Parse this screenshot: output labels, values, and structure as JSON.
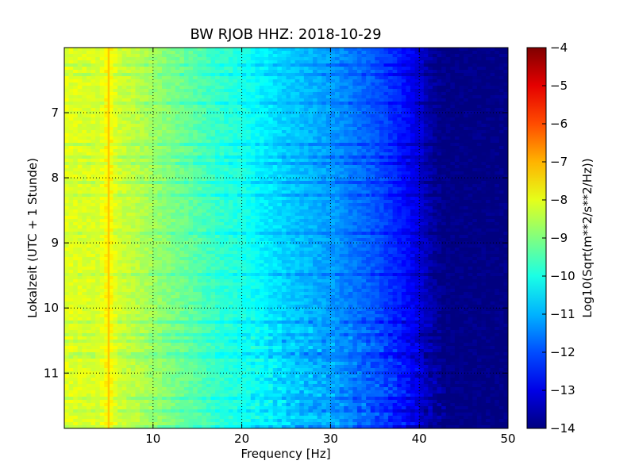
{
  "chart_data": {
    "type": "heatmap",
    "title": "BW RJOB HHZ: 2018-10-29",
    "xlabel": "Frequency [Hz]",
    "ylabel": "Lokalzeit (UTC + 1 Stunde)",
    "xlim": [
      0,
      50
    ],
    "ylim": [
      6,
      11.85
    ],
    "y_inverted": true,
    "x_ticks": [
      10,
      20,
      30,
      40,
      50
    ],
    "x_tick_labels": [
      "10",
      "20",
      "30",
      "40",
      "50"
    ],
    "y_ticks": [
      7,
      8,
      9,
      10,
      11
    ],
    "y_tick_labels": [
      "7",
      "8",
      "9",
      "10",
      "11"
    ],
    "grid": true,
    "colormap": "jet",
    "colorbar": {
      "label": "Log10(Sqrt(m**2/s**2/Hz))",
      "range": [
        -14,
        -4
      ],
      "ticks": [
        -4,
        -5,
        -6,
        -7,
        -8,
        -9,
        -10,
        -11,
        -12,
        -13,
        -14
      ],
      "tick_labels": [
        "−4",
        "−5",
        "−6",
        "−7",
        "−8",
        "−9",
        "−10",
        "−11",
        "−12",
        "−13",
        "−14"
      ]
    },
    "frequency_profile": {
      "frequency_hz": [
        0,
        2,
        4,
        5,
        6,
        8,
        10,
        12,
        15,
        17,
        20,
        22,
        25,
        28,
        30,
        32,
        35,
        37,
        39,
        40,
        41,
        42,
        43,
        50
      ],
      "level": [
        -8.0,
        -8.1,
        -8.1,
        -7.6,
        -8.2,
        -8.4,
        -8.7,
        -9.0,
        -9.4,
        -9.7,
        -10.0,
        -10.3,
        -10.7,
        -11.0,
        -11.2,
        -11.5,
        -11.9,
        -12.3,
        -12.8,
        -13.1,
        -13.5,
        -13.8,
        -14.0,
        -14.0
      ]
    },
    "features": [
      {
        "frequency_hz": 5.0,
        "time_start": 6.0,
        "time_end": 11.85,
        "level": -7.2
      },
      {
        "frequency_hz": 34.5,
        "time_start": 6.55,
        "time_end": 6.75,
        "level": -11.8
      },
      {
        "frequency_hz": 34.5,
        "time_start": 7.35,
        "time_end": 7.55,
        "level": -11.8
      },
      {
        "frequency_hz": 34.5,
        "time_start": 8.15,
        "time_end": 8.35,
        "level": -11.8
      },
      {
        "frequency_hz": 34.5,
        "time_start": 8.95,
        "time_end": 9.15,
        "level": -11.8
      },
      {
        "frequency_hz": 34.5,
        "time_start": 9.7,
        "time_end": 9.9,
        "level": -11.8
      }
    ]
  }
}
